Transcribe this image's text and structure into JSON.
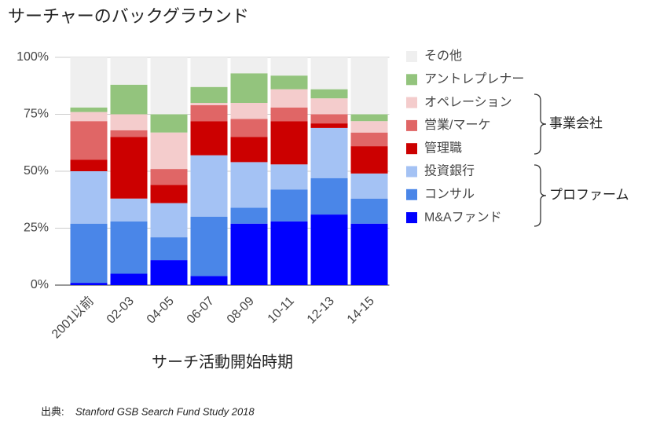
{
  "chart_data": {
    "type": "stacked_bar",
    "title": "サーチャーのバックグラウンド",
    "x_label": "サーチ活動開始時期",
    "categories": [
      "2001以前",
      "02-03",
      "04-05",
      "06-07",
      "08-09",
      "10-11",
      "12-13",
      "14-15"
    ],
    "series": [
      {
        "name": "M&Aファンド",
        "color": "#0000ff",
        "values": [
          1,
          5,
          11,
          4,
          27,
          28,
          31,
          27
        ]
      },
      {
        "name": "コンサル",
        "color": "#4a86e8",
        "values": [
          26,
          23,
          10,
          26,
          7,
          14,
          16,
          11
        ]
      },
      {
        "name": "投資銀行",
        "color": "#a4c2f4",
        "values": [
          23,
          10,
          15,
          27,
          20,
          11,
          22,
          11
        ]
      },
      {
        "name": "管理職",
        "color": "#cc0000",
        "values": [
          5,
          27,
          8,
          15,
          11,
          19,
          2,
          12
        ]
      },
      {
        "name": "営業/マーケ",
        "color": "#e06666",
        "values": [
          17,
          3,
          7,
          7,
          8,
          6,
          4,
          6
        ]
      },
      {
        "name": "オペレーション",
        "color": "#f4cccc",
        "values": [
          4,
          7,
          16,
          1,
          7,
          8,
          7,
          5
        ]
      },
      {
        "name": "アントレプレナー",
        "color": "#93c47d",
        "values": [
          2,
          13,
          8,
          7,
          13,
          6,
          4,
          3
        ]
      },
      {
        "name": "その他",
        "color": "#efefef",
        "values": [
          22,
          12,
          25,
          13,
          7,
          8,
          14,
          25
        ]
      }
    ],
    "ylim": [
      0,
      100
    ],
    "yticks": [
      {
        "value": 0,
        "label": "0%"
      },
      {
        "value": 25,
        "label": "25%"
      },
      {
        "value": 50,
        "label": "50%"
      },
      {
        "value": 75,
        "label": "75%"
      },
      {
        "value": 100,
        "label": "100%"
      }
    ],
    "grid": true,
    "groups": [
      "事業会社",
      "プロファーム"
    ],
    "source": {
      "prefix": "出典:",
      "text": "Stanford GSB Search Fund Study 2018"
    }
  }
}
